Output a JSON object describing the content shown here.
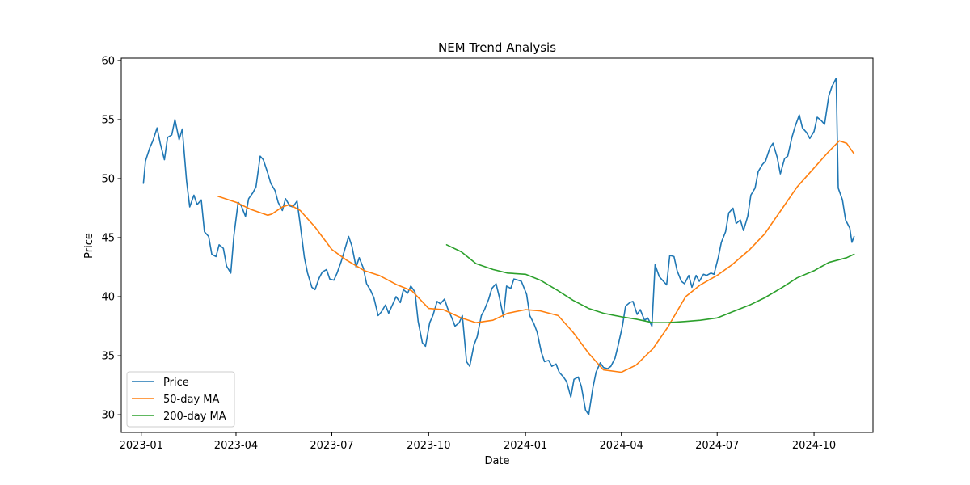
{
  "chart_data": {
    "type": "line",
    "title": "NEM Trend Analysis",
    "xlabel": "Date",
    "ylabel": "Price",
    "xlim": [
      "2022-12-13",
      "2024-11-26"
    ],
    "ylim": [
      28.5,
      60.2
    ],
    "x_ticks": [
      "2023-01-01",
      "2023-04-01",
      "2023-07-01",
      "2023-10-01",
      "2024-01-01",
      "2024-04-01",
      "2024-07-01",
      "2024-10-01"
    ],
    "x_tick_labels": [
      "2023-01",
      "2023-04",
      "2023-07",
      "2023-10",
      "2024-01",
      "2024-04",
      "2024-07",
      "2024-10"
    ],
    "y_ticks": [
      30,
      35,
      40,
      45,
      50,
      55,
      60
    ],
    "y_tick_labels": [
      "30",
      "35",
      "40",
      "45",
      "50",
      "55",
      "60"
    ],
    "grid": false,
    "legend_position": "lower-left",
    "series": [
      {
        "name": "Price",
        "color": "#1f77b4",
        "points": [
          [
            "2023-01-03",
            49.6
          ],
          [
            "2023-01-05",
            51.5
          ],
          [
            "2023-01-09",
            52.6
          ],
          [
            "2023-01-12",
            53.2
          ],
          [
            "2023-01-16",
            54.3
          ],
          [
            "2023-01-19",
            53.0
          ],
          [
            "2023-01-23",
            51.6
          ],
          [
            "2023-01-26",
            53.5
          ],
          [
            "2023-01-30",
            53.7
          ],
          [
            "2023-02-02",
            55.0
          ],
          [
            "2023-02-06",
            53.3
          ],
          [
            "2023-02-09",
            54.2
          ],
          [
            "2023-02-13",
            49.8
          ],
          [
            "2023-02-16",
            47.6
          ],
          [
            "2023-02-20",
            48.6
          ],
          [
            "2023-02-23",
            47.8
          ],
          [
            "2023-02-27",
            48.2
          ],
          [
            "2023-03-02",
            45.5
          ],
          [
            "2023-03-06",
            45.1
          ],
          [
            "2023-03-09",
            43.6
          ],
          [
            "2023-03-13",
            43.4
          ],
          [
            "2023-03-16",
            44.4
          ],
          [
            "2023-03-20",
            44.1
          ],
          [
            "2023-03-23",
            42.6
          ],
          [
            "2023-03-27",
            42.0
          ],
          [
            "2023-03-30",
            45.2
          ],
          [
            "2023-04-03",
            48.0
          ],
          [
            "2023-04-06",
            47.7
          ],
          [
            "2023-04-10",
            46.8
          ],
          [
            "2023-04-13",
            48.3
          ],
          [
            "2023-04-17",
            48.8
          ],
          [
            "2023-04-20",
            49.3
          ],
          [
            "2023-04-24",
            51.9
          ],
          [
            "2023-04-27",
            51.6
          ],
          [
            "2023-05-01",
            50.5
          ],
          [
            "2023-05-04",
            49.6
          ],
          [
            "2023-05-08",
            49.0
          ],
          [
            "2023-05-11",
            48.0
          ],
          [
            "2023-05-15",
            47.3
          ],
          [
            "2023-05-18",
            48.3
          ],
          [
            "2023-05-22",
            47.7
          ],
          [
            "2023-05-25",
            47.6
          ],
          [
            "2023-05-29",
            48.1
          ],
          [
            "2023-06-01",
            46.1
          ],
          [
            "2023-06-05",
            43.3
          ],
          [
            "2023-06-08",
            42.0
          ],
          [
            "2023-06-12",
            40.8
          ],
          [
            "2023-06-15",
            40.6
          ],
          [
            "2023-06-19",
            41.6
          ],
          [
            "2023-06-22",
            42.1
          ],
          [
            "2023-06-26",
            42.3
          ],
          [
            "2023-06-29",
            41.5
          ],
          [
            "2023-07-03",
            41.4
          ],
          [
            "2023-07-06",
            42.0
          ],
          [
            "2023-07-10",
            43.0
          ],
          [
            "2023-07-13",
            43.9
          ],
          [
            "2023-07-17",
            45.1
          ],
          [
            "2023-07-20",
            44.3
          ],
          [
            "2023-07-24",
            42.5
          ],
          [
            "2023-07-27",
            43.3
          ],
          [
            "2023-07-31",
            42.4
          ],
          [
            "2023-08-03",
            41.1
          ],
          [
            "2023-08-07",
            40.5
          ],
          [
            "2023-08-10",
            39.9
          ],
          [
            "2023-08-14",
            38.4
          ],
          [
            "2023-08-17",
            38.7
          ],
          [
            "2023-08-21",
            39.3
          ],
          [
            "2023-08-24",
            38.6
          ],
          [
            "2023-08-28",
            39.4
          ],
          [
            "2023-08-31",
            40.0
          ],
          [
            "2023-09-04",
            39.5
          ],
          [
            "2023-09-07",
            40.6
          ],
          [
            "2023-09-11",
            40.3
          ],
          [
            "2023-09-14",
            40.9
          ],
          [
            "2023-09-18",
            40.4
          ],
          [
            "2023-09-21",
            37.9
          ],
          [
            "2023-09-25",
            36.1
          ],
          [
            "2023-09-28",
            35.8
          ],
          [
            "2023-10-02",
            37.8
          ],
          [
            "2023-10-05",
            38.4
          ],
          [
            "2023-10-09",
            39.6
          ],
          [
            "2023-10-12",
            39.4
          ],
          [
            "2023-10-16",
            39.8
          ],
          [
            "2023-10-19",
            39.0
          ],
          [
            "2023-10-23",
            38.2
          ],
          [
            "2023-10-26",
            37.5
          ],
          [
            "2023-10-30",
            37.8
          ],
          [
            "2023-11-02",
            38.4
          ],
          [
            "2023-11-06",
            34.5
          ],
          [
            "2023-11-09",
            34.1
          ],
          [
            "2023-11-13",
            35.9
          ],
          [
            "2023-11-16",
            36.6
          ],
          [
            "2023-11-20",
            38.4
          ],
          [
            "2023-11-23",
            38.9
          ],
          [
            "2023-11-27",
            39.8
          ],
          [
            "2023-11-30",
            40.7
          ],
          [
            "2023-12-04",
            41.1
          ],
          [
            "2023-12-07",
            40.0
          ],
          [
            "2023-12-11",
            38.3
          ],
          [
            "2023-12-14",
            40.9
          ],
          [
            "2023-12-18",
            40.7
          ],
          [
            "2023-12-21",
            41.5
          ],
          [
            "2023-12-25",
            41.4
          ],
          [
            "2023-12-28",
            41.3
          ],
          [
            "2024-01-02",
            40.2
          ],
          [
            "2024-01-05",
            38.4
          ],
          [
            "2024-01-09",
            37.7
          ],
          [
            "2024-01-12",
            37.0
          ],
          [
            "2024-01-16",
            35.3
          ],
          [
            "2024-01-19",
            34.5
          ],
          [
            "2024-01-23",
            34.6
          ],
          [
            "2024-01-26",
            34.1
          ],
          [
            "2024-01-30",
            34.3
          ],
          [
            "2024-02-02",
            33.6
          ],
          [
            "2024-02-06",
            33.2
          ],
          [
            "2024-02-09",
            32.8
          ],
          [
            "2024-02-13",
            31.5
          ],
          [
            "2024-02-16",
            33.0
          ],
          [
            "2024-02-20",
            33.2
          ],
          [
            "2024-02-23",
            32.4
          ],
          [
            "2024-02-27",
            30.4
          ],
          [
            "2024-03-01",
            30.0
          ],
          [
            "2024-03-05",
            32.3
          ],
          [
            "2024-03-08",
            33.6
          ],
          [
            "2024-03-12",
            34.4
          ],
          [
            "2024-03-15",
            34.0
          ],
          [
            "2024-03-19",
            33.9
          ],
          [
            "2024-03-22",
            34.1
          ],
          [
            "2024-03-26",
            34.8
          ],
          [
            "2024-03-29",
            35.9
          ],
          [
            "2024-04-02",
            37.5
          ],
          [
            "2024-04-05",
            39.2
          ],
          [
            "2024-04-09",
            39.5
          ],
          [
            "2024-04-12",
            39.6
          ],
          [
            "2024-04-16",
            38.5
          ],
          [
            "2024-04-19",
            38.9
          ],
          [
            "2024-04-23",
            38.0
          ],
          [
            "2024-04-26",
            38.2
          ],
          [
            "2024-04-30",
            37.5
          ],
          [
            "2024-05-03",
            42.7
          ],
          [
            "2024-05-07",
            41.7
          ],
          [
            "2024-05-10",
            41.4
          ],
          [
            "2024-05-14",
            41.0
          ],
          [
            "2024-05-17",
            43.5
          ],
          [
            "2024-05-21",
            43.4
          ],
          [
            "2024-05-24",
            42.2
          ],
          [
            "2024-05-28",
            41.3
          ],
          [
            "2024-05-31",
            41.1
          ],
          [
            "2024-06-04",
            41.8
          ],
          [
            "2024-06-07",
            40.8
          ],
          [
            "2024-06-11",
            41.8
          ],
          [
            "2024-06-14",
            41.3
          ],
          [
            "2024-06-18",
            41.9
          ],
          [
            "2024-06-21",
            41.8
          ],
          [
            "2024-06-25",
            42.0
          ],
          [
            "2024-06-28",
            41.9
          ],
          [
            "2024-07-02",
            43.3
          ],
          [
            "2024-07-05",
            44.6
          ],
          [
            "2024-07-09",
            45.5
          ],
          [
            "2024-07-12",
            47.1
          ],
          [
            "2024-07-16",
            47.5
          ],
          [
            "2024-07-19",
            46.2
          ],
          [
            "2024-07-23",
            46.5
          ],
          [
            "2024-07-26",
            45.6
          ],
          [
            "2024-07-30",
            46.8
          ],
          [
            "2024-08-02",
            48.6
          ],
          [
            "2024-08-06",
            49.2
          ],
          [
            "2024-08-09",
            50.6
          ],
          [
            "2024-08-13",
            51.2
          ],
          [
            "2024-08-16",
            51.5
          ],
          [
            "2024-08-20",
            52.6
          ],
          [
            "2024-08-23",
            53.0
          ],
          [
            "2024-08-27",
            51.8
          ],
          [
            "2024-08-30",
            50.4
          ],
          [
            "2024-09-03",
            51.7
          ],
          [
            "2024-09-06",
            51.9
          ],
          [
            "2024-09-10",
            53.5
          ],
          [
            "2024-09-13",
            54.4
          ],
          [
            "2024-09-17",
            55.4
          ],
          [
            "2024-09-20",
            54.3
          ],
          [
            "2024-09-24",
            53.9
          ],
          [
            "2024-09-27",
            53.4
          ],
          [
            "2024-10-01",
            54.0
          ],
          [
            "2024-10-04",
            55.2
          ],
          [
            "2024-10-08",
            54.9
          ],
          [
            "2024-10-11",
            54.6
          ],
          [
            "2024-10-15",
            57.0
          ],
          [
            "2024-10-18",
            57.8
          ],
          [
            "2024-10-22",
            58.5
          ],
          [
            "2024-10-24",
            49.2
          ],
          [
            "2024-10-28",
            48.2
          ],
          [
            "2024-10-31",
            46.5
          ],
          [
            "2024-11-04",
            45.8
          ],
          [
            "2024-11-06",
            44.6
          ],
          [
            "2024-11-08",
            45.1
          ]
        ]
      },
      {
        "name": "50-day MA",
        "color": "#ff7f0e",
        "points": [
          [
            "2023-03-15",
            48.5
          ],
          [
            "2023-04-01",
            48.0
          ],
          [
            "2023-04-15",
            47.4
          ],
          [
            "2023-05-01",
            46.9
          ],
          [
            "2023-05-05",
            47.0
          ],
          [
            "2023-05-15",
            47.6
          ],
          [
            "2023-05-22",
            47.8
          ],
          [
            "2023-06-01",
            47.3
          ],
          [
            "2023-06-15",
            45.9
          ],
          [
            "2023-07-01",
            44.0
          ],
          [
            "2023-07-15",
            43.1
          ],
          [
            "2023-08-01",
            42.2
          ],
          [
            "2023-08-15",
            41.8
          ],
          [
            "2023-09-01",
            41.0
          ],
          [
            "2023-09-15",
            40.5
          ],
          [
            "2023-10-01",
            39.0
          ],
          [
            "2023-10-15",
            38.9
          ],
          [
            "2023-11-01",
            38.2
          ],
          [
            "2023-11-15",
            37.8
          ],
          [
            "2023-12-01",
            38.0
          ],
          [
            "2023-12-15",
            38.6
          ],
          [
            "2024-01-01",
            38.9
          ],
          [
            "2024-01-15",
            38.8
          ],
          [
            "2024-02-01",
            38.4
          ],
          [
            "2024-02-15",
            37.0
          ],
          [
            "2024-03-01",
            35.2
          ],
          [
            "2024-03-15",
            33.8
          ],
          [
            "2024-04-01",
            33.6
          ],
          [
            "2024-04-15",
            34.2
          ],
          [
            "2024-05-01",
            35.6
          ],
          [
            "2024-05-15",
            37.4
          ],
          [
            "2024-06-01",
            40.0
          ],
          [
            "2024-06-15",
            41.0
          ],
          [
            "2024-07-01",
            41.8
          ],
          [
            "2024-07-15",
            42.7
          ],
          [
            "2024-08-01",
            44.0
          ],
          [
            "2024-08-15",
            45.3
          ],
          [
            "2024-09-01",
            47.5
          ],
          [
            "2024-09-15",
            49.3
          ],
          [
            "2024-10-01",
            50.9
          ],
          [
            "2024-10-15",
            52.3
          ],
          [
            "2024-10-25",
            53.2
          ],
          [
            "2024-11-01",
            53.0
          ],
          [
            "2024-11-08",
            52.1
          ]
        ]
      },
      {
        "name": "200-day MA",
        "color": "#2ca02c",
        "points": [
          [
            "2023-10-18",
            44.4
          ],
          [
            "2023-11-01",
            43.8
          ],
          [
            "2023-11-15",
            42.8
          ],
          [
            "2023-12-01",
            42.3
          ],
          [
            "2023-12-15",
            42.0
          ],
          [
            "2024-01-01",
            41.9
          ],
          [
            "2024-01-15",
            41.4
          ],
          [
            "2024-02-01",
            40.5
          ],
          [
            "2024-02-15",
            39.7
          ],
          [
            "2024-03-01",
            39.0
          ],
          [
            "2024-03-15",
            38.6
          ],
          [
            "2024-04-01",
            38.3
          ],
          [
            "2024-04-15",
            38.1
          ],
          [
            "2024-05-01",
            37.8
          ],
          [
            "2024-05-15",
            37.8
          ],
          [
            "2024-06-01",
            37.9
          ],
          [
            "2024-06-15",
            38.0
          ],
          [
            "2024-07-01",
            38.2
          ],
          [
            "2024-07-15",
            38.7
          ],
          [
            "2024-08-01",
            39.3
          ],
          [
            "2024-08-15",
            39.9
          ],
          [
            "2024-09-01",
            40.8
          ],
          [
            "2024-09-15",
            41.6
          ],
          [
            "2024-10-01",
            42.2
          ],
          [
            "2024-10-15",
            42.9
          ],
          [
            "2024-11-01",
            43.3
          ],
          [
            "2024-11-08",
            43.6
          ]
        ]
      }
    ]
  }
}
